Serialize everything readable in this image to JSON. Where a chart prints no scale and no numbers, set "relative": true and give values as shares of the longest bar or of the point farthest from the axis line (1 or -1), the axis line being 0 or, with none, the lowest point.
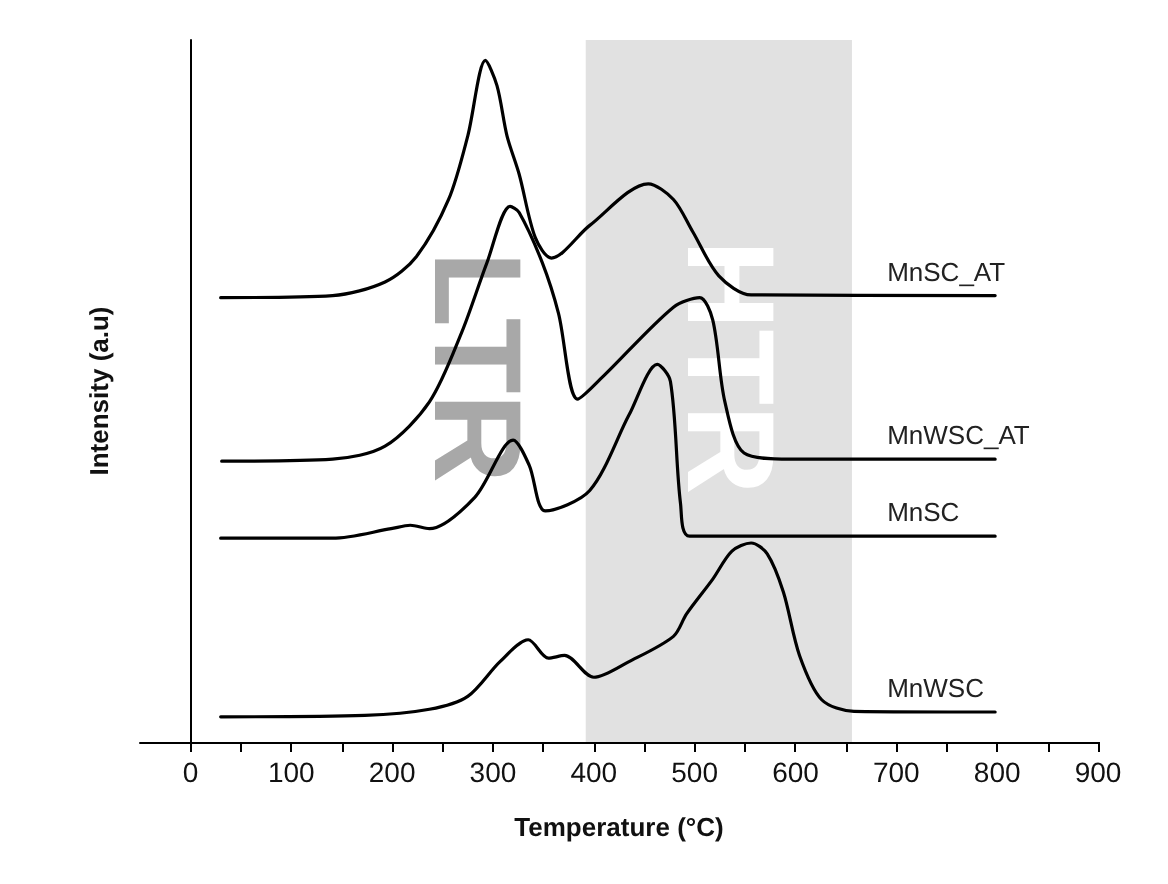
{
  "chart_data": {
    "type": "line",
    "relative": true,
    "xlabel": "Temperature (°C)",
    "ylabel": "Intensity (a.u)",
    "xlim": [
      -50,
      900
    ],
    "xticks": [
      0,
      {
        "value": 50,
        "label": null
      },
      100,
      {
        "value": 150,
        "label": null
      },
      200,
      {
        "value": 250,
        "label": null
      },
      300,
      {
        "value": 350,
        "label": null
      },
      400,
      {
        "value": 450,
        "label": null
      },
      500,
      {
        "value": 550,
        "label": null
      },
      600,
      {
        "value": 650,
        "label": null
      },
      700,
      {
        "value": 750,
        "label": null
      },
      800,
      {
        "value": 850,
        "label": null
      },
      900
    ],
    "legend": false,
    "marker": "none",
    "line_style": "solid",
    "bands": [
      {
        "axis": "x",
        "from": 392,
        "to": 656,
        "color": "#e1e1e1"
      }
    ],
    "annotations": [
      "LTR",
      "HTR"
    ],
    "series": [
      {
        "name": "MnSC_AT",
        "color": "#000000",
        "x": [
          30,
          141,
          193,
          224,
          256,
          275,
          292.5,
          304,
          314,
          326,
          342,
          358,
          396,
          454,
          479,
          498,
          524,
          556,
          798
        ],
        "values": [
          0.652,
          0.655,
          0.675,
          0.712,
          0.796,
          0.889,
          1.0,
          0.963,
          0.889,
          0.833,
          0.74,
          0.71,
          0.758,
          0.819,
          0.796,
          0.749,
          0.684,
          0.656,
          0.655
        ]
      },
      {
        "name": "MnWSC_AT",
        "color": "#000000",
        "x": [
          31,
          141,
          193,
          237,
          269,
          294,
          317,
          326,
          349,
          365,
          384,
          409,
          479,
          505,
          518,
          530,
          549,
          594,
          798
        ],
        "values": [
          0.412,
          0.415,
          0.434,
          0.499,
          0.601,
          0.703,
          0.786,
          0.777,
          0.703,
          0.629,
          0.503,
          0.536,
          0.638,
          0.652,
          0.619,
          0.499,
          0.424,
          0.415,
          0.415
        ]
      },
      {
        "name": "MnSC",
        "color": "#000000",
        "x": [
          30,
          141,
          199,
          218,
          237,
          282,
          320,
          336,
          352,
          396,
          435,
          463,
          476,
          486,
          495,
          798
        ],
        "values": [
          0.299,
          0.299,
          0.313,
          0.318,
          0.313,
          0.359,
          0.443,
          0.406,
          0.339,
          0.369,
          0.48,
          0.554,
          0.529,
          0.35,
          0.302,
          0.302
        ]
      },
      {
        "name": "MnWSC",
        "color": "#000000",
        "x": [
          30,
          173,
          237,
          275,
          307,
          335,
          355,
          371,
          400,
          435,
          479,
          492,
          518,
          537,
          556,
          572,
          588,
          604,
          626,
          658,
          798
        ],
        "values": [
          0.037,
          0.039,
          0.048,
          0.067,
          0.118,
          0.15,
          0.123,
          0.127,
          0.095,
          0.118,
          0.155,
          0.188,
          0.239,
          0.28,
          0.292,
          0.276,
          0.22,
          0.127,
          0.062,
          0.045,
          0.044
        ]
      }
    ]
  }
}
